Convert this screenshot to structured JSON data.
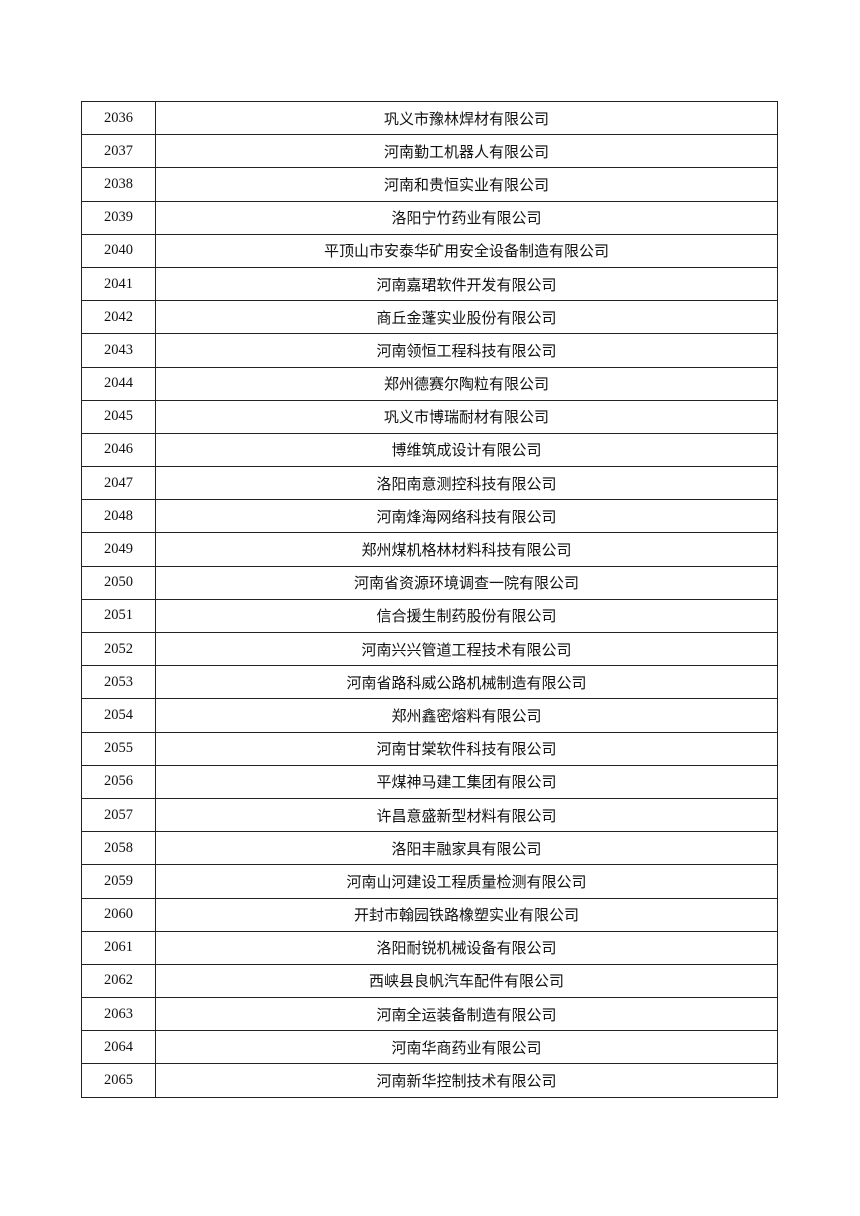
{
  "table": {
    "rows": [
      {
        "no": "2036",
        "name": "巩义市豫林焊材有限公司"
      },
      {
        "no": "2037",
        "name": "河南勤工机器人有限公司"
      },
      {
        "no": "2038",
        "name": "河南和贵恒实业有限公司"
      },
      {
        "no": "2039",
        "name": "洛阳宁竹药业有限公司"
      },
      {
        "no": "2040",
        "name": "平顶山市安泰华矿用安全设备制造有限公司"
      },
      {
        "no": "2041",
        "name": "河南嘉珺软件开发有限公司"
      },
      {
        "no": "2042",
        "name": "商丘金蓬实业股份有限公司"
      },
      {
        "no": "2043",
        "name": "河南领恒工程科技有限公司"
      },
      {
        "no": "2044",
        "name": "郑州德赛尔陶粒有限公司"
      },
      {
        "no": "2045",
        "name": "巩义市博瑞耐材有限公司"
      },
      {
        "no": "2046",
        "name": "博维筑成设计有限公司"
      },
      {
        "no": "2047",
        "name": "洛阳南意测控科技有限公司"
      },
      {
        "no": "2048",
        "name": "河南烽海网络科技有限公司"
      },
      {
        "no": "2049",
        "name": "郑州煤机格林材料科技有限公司"
      },
      {
        "no": "2050",
        "name": "河南省资源环境调查一院有限公司"
      },
      {
        "no": "2051",
        "name": "信合援生制药股份有限公司"
      },
      {
        "no": "2052",
        "name": "河南兴兴管道工程技术有限公司"
      },
      {
        "no": "2053",
        "name": "河南省路科威公路机械制造有限公司"
      },
      {
        "no": "2054",
        "name": "郑州鑫密熔料有限公司"
      },
      {
        "no": "2055",
        "name": "河南甘棠软件科技有限公司"
      },
      {
        "no": "2056",
        "name": "平煤神马建工集团有限公司"
      },
      {
        "no": "2057",
        "name": "许昌意盛新型材料有限公司"
      },
      {
        "no": "2058",
        "name": "洛阳丰融家具有限公司"
      },
      {
        "no": "2059",
        "name": "河南山河建设工程质量检测有限公司"
      },
      {
        "no": "2060",
        "name": "开封市翰园铁路橡塑实业有限公司"
      },
      {
        "no": "2061",
        "name": "洛阳耐锐机械设备有限公司"
      },
      {
        "no": "2062",
        "name": "西峡县良帆汽车配件有限公司"
      },
      {
        "no": "2063",
        "name": "河南全运装备制造有限公司"
      },
      {
        "no": "2064",
        "name": "河南华商药业有限公司"
      },
      {
        "no": "2065",
        "name": "河南新华控制技术有限公司"
      }
    ]
  }
}
